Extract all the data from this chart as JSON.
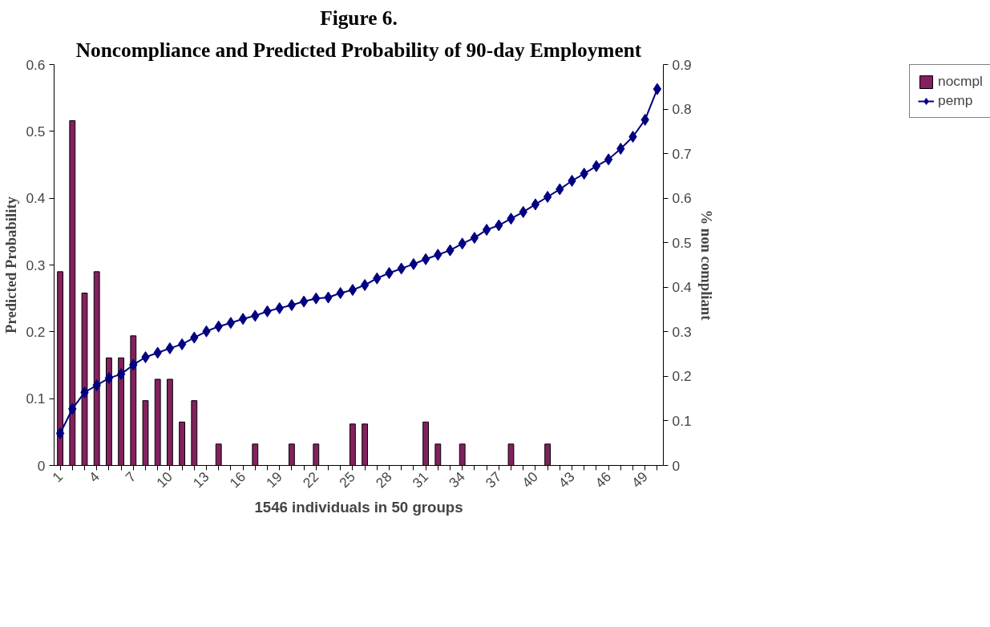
{
  "chart_data": {
    "type": "bar",
    "title": "Figure 6.",
    "subtitle": "Noncompliance and Predicted Probability of 90-day Employment",
    "xlabel": "1546 individuals in 50 groups",
    "ylabel": "Predicted Probability",
    "y2label": "% non compliant",
    "categories": [
      "1",
      null,
      null,
      "4",
      null,
      null,
      "7",
      null,
      null,
      "10",
      null,
      null,
      "13",
      null,
      null,
      "16",
      null,
      null,
      "19",
      null,
      null,
      "22",
      null,
      null,
      "25",
      null,
      null,
      "28",
      null,
      null,
      "31",
      null,
      null,
      "34",
      null,
      null,
      "37",
      null,
      null,
      "40",
      null,
      null,
      "43",
      null,
      null,
      "46",
      null,
      null,
      "49",
      null
    ],
    "series": [
      {
        "name": "nocmpl",
        "color": "#84205f",
        "values": [
          0.29,
          0.516,
          0.258,
          0.29,
          0.161,
          0.161,
          0.194,
          0.097,
          0.129,
          0.129,
          0.065,
          0.097,
          0,
          0.032,
          0,
          0,
          0.032,
          0,
          0,
          0.032,
          0,
          0.032,
          0,
          0,
          0.062,
          0.062,
          0,
          0,
          0,
          0,
          0.065,
          0.032,
          0,
          0.032,
          0,
          0,
          0,
          0.032,
          0,
          0,
          0.032,
          0,
          0,
          0,
          0,
          0,
          0,
          0,
          0,
          0
        ]
      },
      {
        "name": "pemp",
        "type": "line",
        "axis": "y2",
        "color": "#000080",
        "marker": "diamond",
        "values": [
          0.072,
          0.127,
          0.164,
          0.18,
          0.196,
          0.205,
          0.226,
          0.243,
          0.253,
          0.263,
          0.272,
          0.287,
          0.301,
          0.312,
          0.32,
          0.329,
          0.336,
          0.346,
          0.353,
          0.36,
          0.368,
          0.375,
          0.377,
          0.387,
          0.394,
          0.405,
          0.42,
          0.432,
          0.442,
          0.452,
          0.463,
          0.473,
          0.483,
          0.498,
          0.511,
          0.529,
          0.539,
          0.554,
          0.569,
          0.586,
          0.603,
          0.62,
          0.639,
          0.655,
          0.672,
          0.687,
          0.711,
          0.738,
          0.776,
          0.845
        ]
      }
    ],
    "ylim": [
      0,
      0.6
    ],
    "yticks": [
      0,
      0.1,
      0.2,
      0.3,
      0.4,
      0.5,
      0.6
    ],
    "y2lim": [
      0,
      0.9
    ],
    "y2ticks": [
      0,
      0.1,
      0.2,
      0.3,
      0.4,
      0.5,
      0.6,
      0.7,
      0.8,
      0.9
    ],
    "grid": false,
    "legend": "right"
  }
}
